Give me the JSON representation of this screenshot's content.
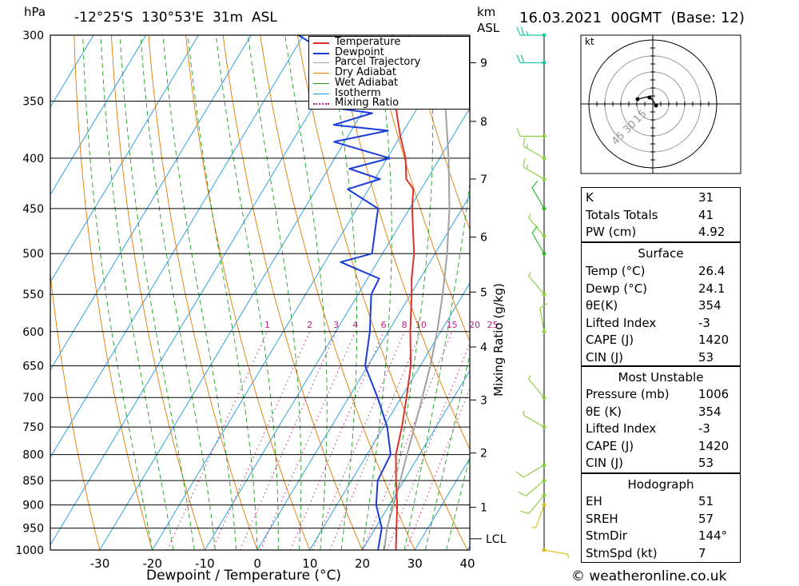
{
  "header": {
    "hpa_label": "hPa",
    "location": "-12°25'S  130°53'E  31m  ASL",
    "km_label": "km",
    "asl_label": "ASL",
    "date": "16.03.2021  00GMT  (Base: 12)"
  },
  "footer": {
    "copyright": "© weatheronline.co.uk"
  },
  "chart_data": {
    "type": "line",
    "subtype": "skew-T log-P",
    "xlabel": "Dewpoint / Temperature (°C)",
    "ylabel_left": "hPa",
    "ylabel_right_mixing": "Mixing Ratio (g/kg)",
    "pressure_levels": [
      300,
      350,
      400,
      450,
      500,
      550,
      600,
      650,
      700,
      750,
      800,
      850,
      900,
      950,
      1000
    ],
    "x_ticks": [
      -30,
      -20,
      -10,
      0,
      10,
      20,
      30,
      40
    ],
    "xlim": [
      -40,
      40
    ],
    "ylim": [
      1000,
      300
    ],
    "km_ticks": [
      {
        "km": 1,
        "p": 905
      },
      {
        "km": 2,
        "p": 797
      },
      {
        "km": 3,
        "p": 704
      },
      {
        "km": 4,
        "p": 622
      },
      {
        "km": 5,
        "p": 547
      },
      {
        "km": 6,
        "p": 481
      },
      {
        "km": 7,
        "p": 420
      },
      {
        "km": 8,
        "p": 367
      },
      {
        "km": 9,
        "p": 320
      }
    ],
    "lcl": {
      "label": "LCL",
      "p": 974
    },
    "mixing_ratio_labels": [
      "1",
      "2",
      "3",
      "4",
      "6",
      "8",
      "10",
      "15",
      "20",
      "25"
    ],
    "legend": [
      {
        "name": "Temperature",
        "color": "#e0302a",
        "style": "solid"
      },
      {
        "name": "Dewpoint",
        "color": "#1c3cd8",
        "style": "solid"
      },
      {
        "name": "Parcel Trajectory",
        "color": "#a0a0a0",
        "style": "solid"
      },
      {
        "name": "Dry Adiabat",
        "color": "#e07a00",
        "style": "solid"
      },
      {
        "name": "Wet Adiabat",
        "color": "#1fa01f",
        "style": "solid"
      },
      {
        "name": "Isotherm",
        "color": "#1a9ae0",
        "style": "solid"
      },
      {
        "name": "Mixing Ratio",
        "color": "#c0208a",
        "style": "dotted"
      }
    ],
    "series": [
      {
        "name": "Temperature",
        "points": [
          [
            1000,
            26.4
          ],
          [
            950,
            24
          ],
          [
            900,
            21.5
          ],
          [
            850,
            18.5
          ],
          [
            800,
            15.5
          ],
          [
            750,
            13.5
          ],
          [
            700,
            11
          ],
          [
            650,
            8.2
          ],
          [
            600,
            4.2
          ],
          [
            550,
            0.2
          ],
          [
            530,
            -1.6
          ],
          [
            500,
            -4
          ],
          [
            450,
            -9.5
          ],
          [
            430,
            -11.5
          ],
          [
            420,
            -14
          ],
          [
            400,
            -16.5
          ],
          [
            380,
            -20
          ],
          [
            365,
            -22.5
          ],
          [
            350,
            -25
          ],
          [
            300,
            -33
          ]
        ]
      },
      {
        "name": "Dewpoint",
        "points": [
          [
            1000,
            23
          ],
          [
            950,
            21.2
          ],
          [
            900,
            17.5
          ],
          [
            850,
            15
          ],
          [
            800,
            14.5
          ],
          [
            750,
            10.7
          ],
          [
            700,
            5.5
          ],
          [
            650,
            -0.5
          ],
          [
            600,
            -3.5
          ],
          [
            550,
            -7.5
          ],
          [
            530,
            -7.8
          ],
          [
            510,
            -17
          ],
          [
            500,
            -12
          ],
          [
            450,
            -16
          ],
          [
            430,
            -24
          ],
          [
            420,
            -19
          ],
          [
            410,
            -26
          ],
          [
            400,
            -19.5
          ],
          [
            385,
            -32
          ],
          [
            375,
            -23
          ],
          [
            370,
            -34
          ],
          [
            360,
            -28
          ],
          [
            355,
            -37
          ],
          [
            350,
            -28
          ],
          [
            345,
            -40
          ],
          [
            330,
            -43
          ],
          [
            310,
            -45
          ],
          [
            300,
            -51
          ]
        ]
      },
      {
        "name": "Parcel Trajectory",
        "points": [
          [
            1000,
            24.2
          ],
          [
            950,
            22.2
          ],
          [
            900,
            20.8
          ],
          [
            850,
            19.3
          ],
          [
            800,
            17.6
          ],
          [
            750,
            15.9
          ],
          [
            700,
            14
          ],
          [
            650,
            11.9
          ],
          [
            600,
            9.3
          ],
          [
            550,
            6.1
          ],
          [
            500,
            2.3
          ],
          [
            450,
            -2.4
          ],
          [
            400,
            -8.3
          ],
          [
            350,
            -15.5
          ],
          [
            300,
            -24
          ]
        ]
      }
    ],
    "winds": [
      {
        "p": 300,
        "dir": 270,
        "kt": 25,
        "color": "#20c8a0"
      },
      {
        "p": 320,
        "dir": 270,
        "kt": 20,
        "color": "#20c8a0"
      },
      {
        "p": 380,
        "dir": 270,
        "kt": 12,
        "color": "#8ad040"
      },
      {
        "p": 400,
        "dir": 300,
        "kt": 15,
        "color": "#8ad040"
      },
      {
        "p": 420,
        "dir": 300,
        "kt": 15,
        "color": "#8ad040"
      },
      {
        "p": 450,
        "dir": 330,
        "kt": 10,
        "color": "#30b830"
      },
      {
        "p": 480,
        "dir": 320,
        "kt": 8,
        "color": "#8ad040"
      },
      {
        "p": 500,
        "dir": 330,
        "kt": 10,
        "color": "#30b830"
      },
      {
        "p": 550,
        "dir": 320,
        "kt": 8,
        "color": "#8ad040"
      },
      {
        "p": 600,
        "dir": 350,
        "kt": 10,
        "color": "#8ad040"
      },
      {
        "p": 700,
        "dir": 320,
        "kt": 5,
        "color": "#8ad040"
      },
      {
        "p": 750,
        "dir": 300,
        "kt": 8,
        "color": "#8ad040"
      },
      {
        "p": 820,
        "dir": 240,
        "kt": 10,
        "color": "#8ad040"
      },
      {
        "p": 850,
        "dir": 230,
        "kt": 12,
        "color": "#8ad040"
      },
      {
        "p": 880,
        "dir": 220,
        "kt": 12,
        "color": "#8ad040"
      },
      {
        "p": 900,
        "dir": 200,
        "kt": 5,
        "color": "#d8c020"
      },
      {
        "p": 1000,
        "dir": 100,
        "kt": 7,
        "color": "#d8c020"
      }
    ]
  },
  "hodograph": {
    "unit_label": "kt",
    "ring_labels": [
      "15",
      "30",
      "45"
    ]
  },
  "indices": {
    "rows": [
      {
        "k": "K",
        "v": "31"
      },
      {
        "k": "Totals Totals",
        "v": "41"
      },
      {
        "k": "PW (cm)",
        "v": "4.92"
      }
    ]
  },
  "surface": {
    "title": "Surface",
    "rows": [
      {
        "k": "Temp (°C)",
        "v": "26.4"
      },
      {
        "k": "Dewp (°C)",
        "v": "24.1"
      },
      {
        "k": "θE(K)",
        "v": "354"
      },
      {
        "k": "Lifted Index",
        "v": "-3"
      },
      {
        "k": "CAPE (J)",
        "v": "1420"
      },
      {
        "k": "CIN (J)",
        "v": "53"
      }
    ]
  },
  "most_unstable": {
    "title": "Most Unstable",
    "rows": [
      {
        "k": "Pressure (mb)",
        "v": "1006"
      },
      {
        "k": "θE (K)",
        "v": "354"
      },
      {
        "k": "Lifted Index",
        "v": "-3"
      },
      {
        "k": "CAPE (J)",
        "v": "1420"
      },
      {
        "k": "CIN (J)",
        "v": "53"
      }
    ]
  },
  "hodograph_table": {
    "title": "Hodograph",
    "rows": [
      {
        "k": "EH",
        "v": "51"
      },
      {
        "k": "SREH",
        "v": "57"
      },
      {
        "k": "StmDir",
        "v": "144°"
      },
      {
        "k": "StmSpd (kt)",
        "v": "7"
      }
    ]
  }
}
